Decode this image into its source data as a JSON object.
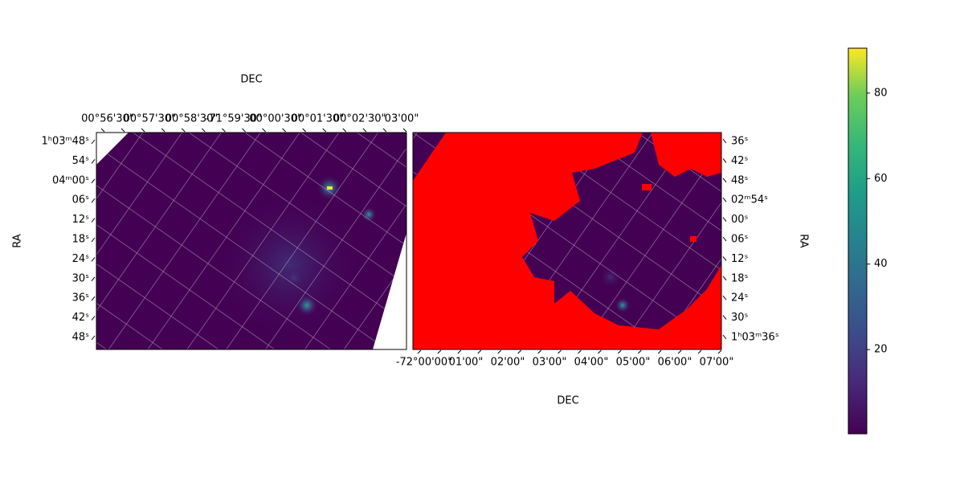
{
  "chart_data": [
    {
      "type": "image",
      "xlabel": "DEC",
      "ylabel": "RA",
      "xtick_labels": [
        "00°56'30\"",
        "00°57'30\"",
        "00°58'30\"",
        "-71°59'30\"",
        "00°00'30\"",
        "00°01'30\"",
        "00°02'30\"",
        "03'00\""
      ],
      "ytick_labels": [
        "1ʰ03ᵐ48ˢ",
        "54ˢ",
        "04ᵐ00ˢ",
        "06ˢ",
        "12ˢ",
        "18ˢ",
        "24ˢ",
        "30ˢ",
        "36ˢ",
        "42ˢ",
        "48ˢ"
      ]
    },
    {
      "type": "image",
      "xlabel": "DEC",
      "ylabel": "RA",
      "xtick_labels": [
        "-72°00'00\"",
        "01'00\"",
        "02'00\"",
        "03'00\"",
        "04'00\"",
        "05'00\"",
        "06'00\"",
        "07'00\""
      ],
      "ytick_labels": [
        "36ˢ",
        "42ˢ",
        "48ˢ",
        "02ᵐ54ˢ",
        "00ˢ",
        "06ˢ",
        "12ˢ",
        "18ˢ",
        "24ˢ",
        "30ˢ",
        "1ʰ03ᵐ36ˢ"
      ]
    },
    {
      "type": "colorbar",
      "colormap": "viridis",
      "clim": [
        0.3,
        90.5
      ],
      "ticks": [
        20,
        40,
        60,
        80
      ]
    }
  ]
}
